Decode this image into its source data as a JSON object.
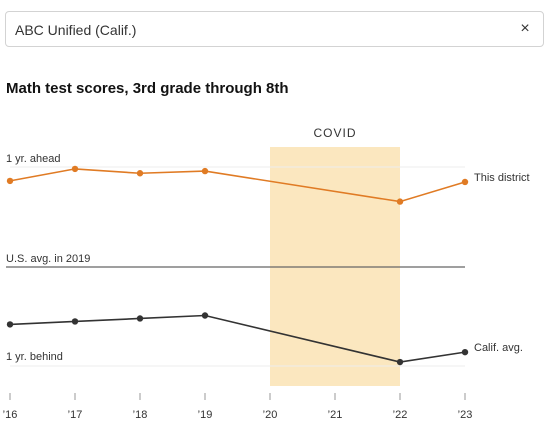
{
  "search": {
    "value": "ABC Unified (Calif.)",
    "close_icon": "×"
  },
  "chart_data": {
    "type": "line",
    "title": "Math test scores, 3rd grade through 8th",
    "x": [
      "’16",
      "’17",
      "’18",
      "’19",
      "’20",
      "’21",
      "’22",
      "’23"
    ],
    "y_labels": {
      "top": "1 yr. ahead",
      "reference": "U.S. avg. in 2019",
      "bottom": "1 yr. behind"
    },
    "ylim": [
      -1.2,
      1.2
    ],
    "reference_value": 0,
    "covid_band": {
      "label": "COVID",
      "from": "’20",
      "to": "’22"
    },
    "series": [
      {
        "name": "This district",
        "color": "#e07b24",
        "points": [
          {
            "x": "’16",
            "y": 0.79
          },
          {
            "x": "’17",
            "y": 0.9
          },
          {
            "x": "’18",
            "y": 0.86
          },
          {
            "x": "’19",
            "y": 0.88
          },
          {
            "x": "’22",
            "y": 0.6
          },
          {
            "x": "’23",
            "y": 0.78
          }
        ]
      },
      {
        "name": "Calif. avg.",
        "color": "#333333",
        "points": [
          {
            "x": "’16",
            "y": -0.58
          },
          {
            "x": "’17",
            "y": -0.55
          },
          {
            "x": "’18",
            "y": -0.52
          },
          {
            "x": "’19",
            "y": -0.49
          },
          {
            "x": "’22",
            "y": -0.96
          },
          {
            "x": "’23",
            "y": -0.86
          }
        ]
      }
    ]
  }
}
